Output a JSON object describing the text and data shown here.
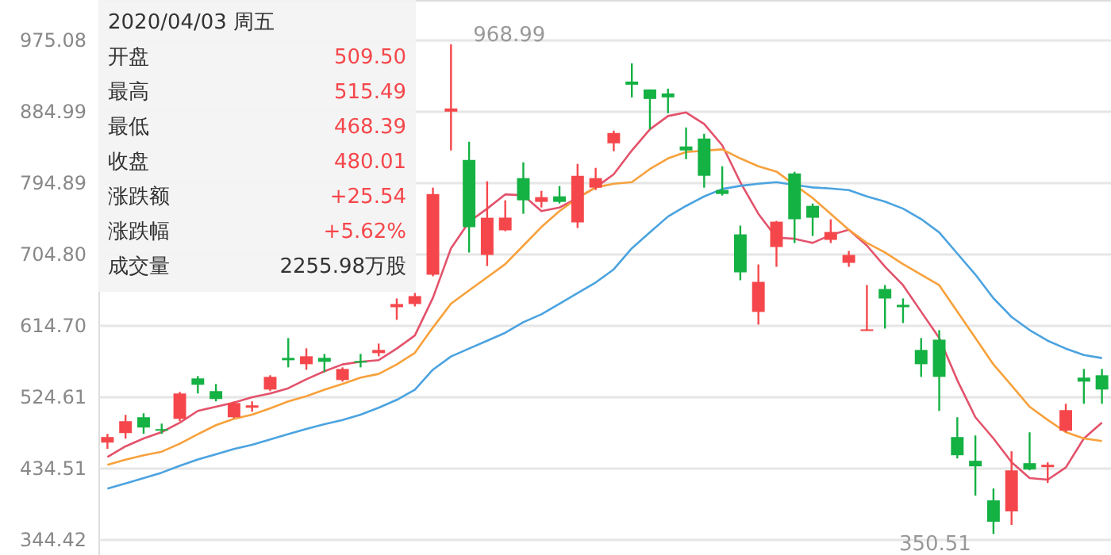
{
  "chart_data": {
    "type": "candlestick",
    "categories": [
      null,
      null,
      null,
      null,
      null,
      null,
      null,
      null,
      null,
      null,
      null,
      null,
      null,
      null,
      null,
      null,
      null,
      null,
      null,
      null,
      null,
      null,
      null,
      null,
      null,
      null,
      null,
      null,
      null,
      null,
      null,
      null,
      null,
      null,
      null,
      null,
      null,
      null,
      null,
      null,
      null,
      null,
      null,
      null,
      null,
      null,
      null,
      null,
      null,
      null,
      null,
      null,
      null,
      null,
      null,
      null
    ],
    "ohlc": [
      [
        466,
        477,
        458,
        473
      ],
      [
        478,
        501,
        471,
        493
      ],
      [
        498,
        503,
        477,
        485
      ],
      [
        483,
        490,
        477,
        481
      ],
      [
        496,
        530,
        493,
        528
      ],
      [
        547,
        550,
        528,
        539
      ],
      [
        531,
        540,
        518,
        521
      ],
      [
        498,
        518,
        497,
        516
      ],
      [
        510,
        518,
        505,
        513
      ],
      [
        533,
        551,
        531,
        549
      ],
      [
        573,
        598,
        561,
        570
      ],
      [
        565,
        585,
        558,
        575
      ],
      [
        573,
        578,
        555,
        568
      ],
      [
        545,
        561,
        543,
        559
      ],
      [
        569,
        578,
        561,
        567
      ],
      [
        579,
        591,
        575,
        583
      ],
      [
        637,
        648,
        621,
        641
      ],
      [
        641,
        655,
        638,
        651
      ],
      [
        678,
        788,
        676,
        780
      ],
      [
        884,
        968.99,
        835,
        888
      ],
      [
        823,
        846,
        706,
        738
      ],
      [
        703,
        796,
        689,
        750
      ],
      [
        734,
        772,
        733,
        750
      ],
      [
        800,
        820,
        755,
        772
      ],
      [
        770,
        784,
        763,
        776
      ],
      [
        777,
        790,
        768,
        770
      ],
      [
        744,
        818,
        737,
        803
      ],
      [
        788,
        813,
        785,
        800
      ],
      [
        844,
        860,
        834,
        857
      ],
      [
        922,
        945,
        902,
        918
      ],
      [
        912,
        912,
        862,
        900
      ],
      [
        907,
        913,
        882,
        902
      ],
      [
        840,
        864,
        824,
        835
      ],
      [
        850,
        856,
        788,
        803
      ],
      [
        785,
        815,
        778,
        780
      ],
      [
        729,
        740,
        671,
        681
      ],
      [
        631,
        691,
        615,
        669
      ],
      [
        713,
        746,
        688,
        745
      ],
      [
        806,
        808,
        718,
        748
      ],
      [
        765,
        768,
        727,
        750
      ],
      [
        722,
        748,
        718,
        732
      ],
      [
        693,
        708,
        688,
        703
      ],
      [
        607,
        665,
        607,
        609
      ],
      [
        660,
        665,
        610,
        648
      ],
      [
        640,
        648,
        617,
        637
      ],
      [
        583,
        598,
        549,
        565
      ],
      [
        596,
        608,
        506,
        549
      ],
      [
        473,
        498,
        446,
        450
      ],
      [
        443,
        475,
        399,
        436
      ],
      [
        393,
        408,
        350.51,
        366
      ],
      [
        379,
        455,
        362,
        431
      ],
      [
        440,
        479,
        431,
        432
      ],
      [
        435,
        441,
        415,
        438
      ],
      [
        481,
        515,
        479,
        507
      ],
      [
        548,
        559,
        515,
        543
      ],
      [
        551,
        559,
        515,
        533
      ]
    ],
    "colors": [
      "#f5474b",
      "#f5474b",
      "#14b143",
      "#14b143",
      "#f5474b",
      "#14b143",
      "#14b143",
      "#f5474b",
      "#f5474b",
      "#f5474b",
      "#14b143",
      "#f5474b",
      "#14b143",
      "#f5474b",
      "#14b143",
      "#f5474b",
      "#f5474b",
      "#f5474b",
      "#f5474b",
      "#f5474b",
      "#14b143",
      "#f5474b",
      "#f5474b",
      "#14b143",
      "#f5474b",
      "#14b143",
      "#f5474b",
      "#f5474b",
      "#f5474b",
      "#14b143",
      "#14b143",
      "#14b143",
      "#14b143",
      "#14b143",
      "#14b143",
      "#14b143",
      "#f5474b",
      "#f5474b",
      "#14b143",
      "#14b143",
      "#f5474b",
      "#f5474b",
      "#f5474b",
      "#14b143",
      "#14b143",
      "#14b143",
      "#14b143",
      "#14b143",
      "#14b143",
      "#14b143",
      "#f5474b",
      "#14b143",
      "#f5474b",
      "#f5474b",
      "#14b143",
      "#14b143"
    ],
    "series": [
      {
        "type": "line",
        "color": "#e3526b",
        "values": [
          447.9,
          461.2,
          471.2,
          479.2,
          491.2,
          506.0,
          511.2,
          516.5,
          523.2,
          528.0,
          534.6,
          546.0,
          556.1,
          564.7,
          568.1,
          570.1,
          584.7,
          601.3,
          648.8,
          711.4,
          744.8,
          761.5,
          779.5,
          778.3,
          758.3,
          762.9,
          774.9,
          788.3,
          804.9,
          834.9,
          861.6,
          878.4,
          883.0,
          868.4,
          841.5,
          794.9,
          754.9,
          724.8,
          723.4,
          718.2,
          728.2,
          734.8,
          714.8,
          688.2,
          664.8,
          631.3,
          598.1,
          544.7,
          498.0,
          471.2,
          441.2,
          421.1,
          419.1,
          434.5,
          471.2,
          491.2
        ]
      },
      {
        "type": "line",
        "color": "#f7a13c",
        "values": [
          437.9,
          444.5,
          449.9,
          454.5,
          464.6,
          476.6,
          488.0,
          496.0,
          501.2,
          509.2,
          518.0,
          524.6,
          532.7,
          540.1,
          548.1,
          552.7,
          564.7,
          579.3,
          611.3,
          641.4,
          658.2,
          674.8,
          691.4,
          714.8,
          738.3,
          758.3,
          774.9,
          788.3,
          792.9,
          794.9,
          811.5,
          824.9,
          833.0,
          null,
          836.4,
          824.9,
          814.9,
          808.3,
          null,
          774.9,
          754.9,
          734.8,
          718.2,
          706.2,
          691.4,
          678.2,
          664.8,
          631.4,
          598.2,
          564.7,
          538.1,
          511.2,
          494.6,
          479.2,
          471.2,
          468.0
        ]
      },
      {
        "type": "line",
        "color": "#4ba3e0",
        "values": [
          407.9,
          414.5,
          421.2,
          428.0,
          436.6,
          444.6,
          451.2,
          458.0,
          463.2,
          470.0,
          476.6,
          483.2,
          489.2,
          494.6,
          501.2,
          510.0,
          520.0,
          532.7,
          558.1,
          574.7,
          584.7,
          594.7,
          604.7,
          618.1,
          628.1,
          641.4,
          654.8,
          668.2,
          684.8,
          711.4,
          731.5,
          751.5,
          764.9,
          776.9,
          786.3,
          790.3,
          792.9,
          794.9,
          791.5,
          788.3,
          786.9,
          784.9,
          776.9,
          770.3,
          761.5,
          748.3,
          731.5,
          704.8,
          678.2,
          648.2,
          624.7,
          608.1,
          594.7,
          584.7,
          576.7,
          572.7
        ]
      }
    ],
    "ylim": [
      324,
      1025
    ],
    "yticks": [
      344.42,
      434.51,
      524.61,
      {
        "value": 614.7,
        "label": "614.70"
      },
      {
        "value": 704.8,
        "label": "704.80"
      },
      794.89,
      884.99,
      975.08
    ],
    "tick_labels": "y",
    "grid": "y",
    "annotations": [
      "2020/04/03 周五",
      "开盘",
      "509.50",
      "最高",
      "515.49",
      "最低",
      "468.39",
      "收盘",
      "480.01",
      "涨跌额",
      "+25.54",
      "涨跌幅",
      "+5.62%",
      "成交量",
      "2255.98万股",
      "968.99",
      "350.51"
    ]
  }
}
